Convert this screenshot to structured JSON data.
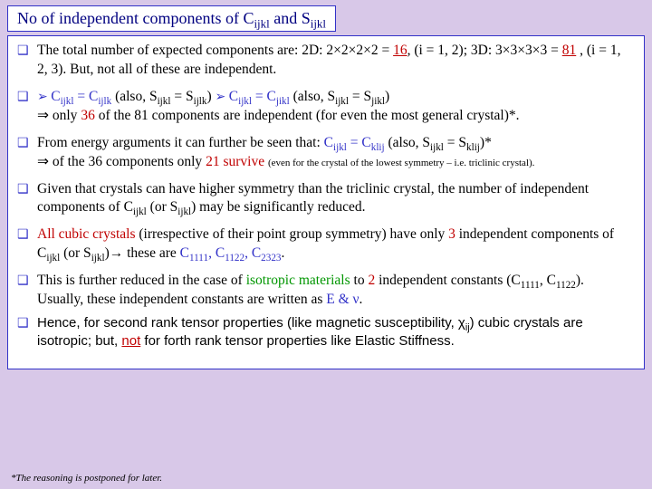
{
  "colors": {
    "page_bg": "#d8c8e8",
    "box_border": "#3232c8",
    "box_bg": "#ffffff",
    "text": "#000000",
    "red": "#c00000",
    "blue": "#3232c8",
    "green": "#009600",
    "navy": "#000080"
  },
  "title": {
    "pre": "No of independent components of C",
    "sub1": "ijkl",
    "mid": " and S",
    "sub2": "ijkl"
  },
  "b1": {
    "a": "The total number of expected components are: 2D: ",
    "b": "2×2×2×2 = ",
    "c": "16",
    "d": ", (i = 1, 2); 3D: ",
    "e": "3×3×3×3 = ",
    "f": "81",
    "g": " , (i = 1, 2, 3). But, not all of these are independent."
  },
  "b2": {
    "c1a": "C",
    "c1b": "ijkl",
    "c1c": " = C",
    "c1d": "ijlk",
    "p1": " (also, S",
    "p1s1": "ijkl",
    "p1m": " = S",
    "p1s2": "ijlk",
    "p1e": ") ",
    "c2a": "C",
    "c2b": "ijkl",
    "c2c": " = C",
    "c2d": "jikl",
    "p2": " (also, S",
    "p2s1": "ijkl",
    "p2m": " = S",
    "p2s2": "jikl",
    "p2e": ")",
    "l2a": " only ",
    "l2b": "36",
    "l2c": " of the 81 components are independent (for even the most general crystal)*."
  },
  "b3": {
    "a": "From energy arguments it can further be seen that: ",
    "c1a": "C",
    "c1b": "ijkl",
    "c1c": " = C",
    "c1d": "klij",
    "p": " (also, S",
    "ps1": "ijkl",
    "pm": " = S",
    "ps2": "klij",
    "pe": ")*",
    "l2a": " of the 36 components only ",
    "l2b": "21 survive",
    "note": "(even for the crystal of the lowest symmetry – i.e. triclinic crystal)."
  },
  "b4": {
    "a": "Given that crystals can have higher symmetry than the triclinic crystal, the number of independent components of C",
    "s1": "ijkl",
    "b": " (or S",
    "s2": "ijkl",
    "c": ") may be significantly reduced."
  },
  "b5": {
    "a": "All cubic crystals",
    "b": " (irrespective of their point group symmetry) have only ",
    "c": "3",
    "d": " independent components of C",
    "s1": "ijkl",
    "e": " (or S",
    "s2": "ijkl",
    "f": ")→ these are ",
    "g1": "C",
    "g1s": "1111",
    "gm1": ", ",
    "g2": "C",
    "g2s": "1122",
    "gm2": ", ",
    "g3": "C",
    "g3s": "2323",
    "ge": "."
  },
  "b6": {
    "a": "This is further reduced in the case of ",
    "b": "isotropic materials",
    "c": " to ",
    "d": "2",
    "e": " independent constants (C",
    "s1": "1111",
    "f": ", C",
    "s2": "1122",
    "g": "). Usually, these independent constants are written as ",
    "h": "E & ν",
    "i": "."
  },
  "b7": {
    "a": "Hence, for second rank tensor properties (like magnetic susceptibility, χ",
    "s": "ij",
    "b": ") cubic crystals are isotropic; but, ",
    "c": "not",
    "d": " for forth rank tensor properties like Elastic Stiffness."
  },
  "footnote": "*The reasoning is postponed for later."
}
